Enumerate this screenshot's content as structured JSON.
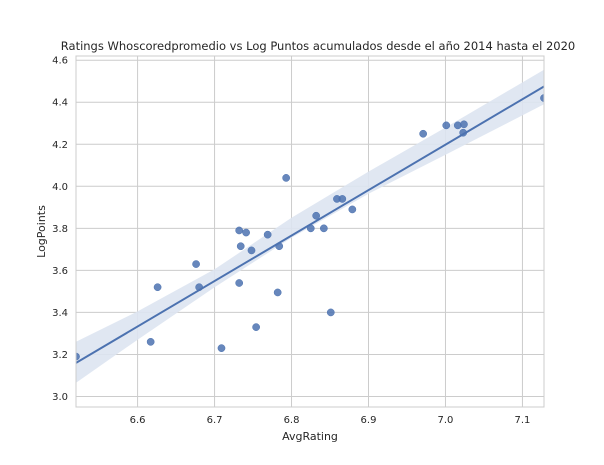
{
  "chart_data": {
    "type": "scatter",
    "title": "Ratings Whoscoredpromedio vs Log Puntos acumulados desde el año 2014 hasta el 2020",
    "xlabel": "AvgRating",
    "ylabel": "LogPoints",
    "xlim": [
      6.52,
      7.128
    ],
    "ylim": [
      2.95,
      4.62
    ],
    "xticks": [
      6.6,
      6.7,
      6.8,
      6.9,
      7.0,
      7.1
    ],
    "yticks": [
      3.0,
      3.2,
      3.4,
      3.6,
      3.8,
      4.0,
      4.2,
      4.4,
      4.6
    ],
    "grid": true,
    "colors": {
      "points": "#4c72b0",
      "line": "#4c72b0",
      "band": "#dde4f1",
      "grid": "#cccccc"
    },
    "points": [
      {
        "x": 6.52,
        "y": 3.19
      },
      {
        "x": 6.617,
        "y": 3.26
      },
      {
        "x": 6.626,
        "y": 3.52
      },
      {
        "x": 6.676,
        "y": 3.63
      },
      {
        "x": 6.68,
        "y": 3.52
      },
      {
        "x": 6.709,
        "y": 3.23
      },
      {
        "x": 6.732,
        "y": 3.79
      },
      {
        "x": 6.734,
        "y": 3.715
      },
      {
        "x": 6.732,
        "y": 3.54
      },
      {
        "x": 6.741,
        "y": 3.78
      },
      {
        "x": 6.748,
        "y": 3.695
      },
      {
        "x": 6.754,
        "y": 3.33
      },
      {
        "x": 6.769,
        "y": 3.77
      },
      {
        "x": 6.782,
        "y": 3.495
      },
      {
        "x": 6.784,
        "y": 3.715
      },
      {
        "x": 6.793,
        "y": 4.04
      },
      {
        "x": 6.825,
        "y": 3.8
      },
      {
        "x": 6.832,
        "y": 3.86
      },
      {
        "x": 6.842,
        "y": 3.8
      },
      {
        "x": 6.851,
        "y": 3.4
      },
      {
        "x": 6.859,
        "y": 3.94
      },
      {
        "x": 6.866,
        "y": 3.94
      },
      {
        "x": 6.879,
        "y": 3.89
      },
      {
        "x": 6.971,
        "y": 4.25
      },
      {
        "x": 7.001,
        "y": 4.29
      },
      {
        "x": 7.016,
        "y": 4.29
      },
      {
        "x": 7.024,
        "y": 4.295
      },
      {
        "x": 7.023,
        "y": 4.255
      },
      {
        "x": 7.128,
        "y": 4.42
      }
    ],
    "regression": {
      "x": [
        6.52,
        7.128
      ],
      "y": [
        3.16,
        4.475
      ]
    },
    "confidence_band": {
      "x": [
        6.52,
        6.6,
        6.7,
        6.8,
        6.9,
        7.0,
        7.128
      ],
      "upper": [
        3.26,
        3.405,
        3.605,
        3.85,
        4.07,
        4.28,
        4.555
      ],
      "lower": [
        3.065,
        3.27,
        3.52,
        3.755,
        3.965,
        4.15,
        4.39
      ]
    }
  }
}
